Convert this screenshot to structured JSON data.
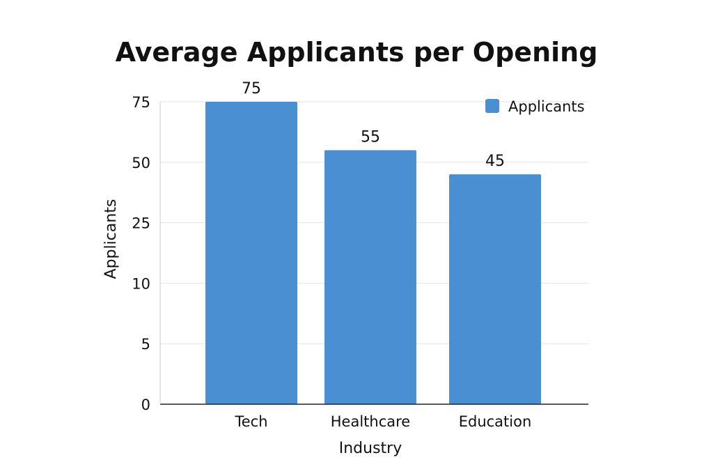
{
  "chart_data": {
    "type": "bar",
    "title": "Average Applicants per Opening",
    "xlabel": "Industry",
    "ylabel": "Applicants",
    "categories": [
      "Tech",
      "Healthcare",
      "Education"
    ],
    "series": [
      {
        "name": "Applicants",
        "values": [
          75,
          55,
          45
        ],
        "color": "#4a8fd1"
      }
    ],
    "data_labels": [
      "75",
      "55",
      "45"
    ],
    "y_ticks": [
      0,
      5,
      10,
      25,
      50,
      75
    ],
    "y_tick_labels": [
      "0",
      "5",
      "10",
      "25",
      "50",
      "75"
    ],
    "y_scale": "non-uniform (ticks evenly spaced)",
    "ylim": [
      0,
      75
    ],
    "grid": true,
    "legend": {
      "placement": "top-right",
      "entries": [
        "Applicants"
      ]
    }
  }
}
